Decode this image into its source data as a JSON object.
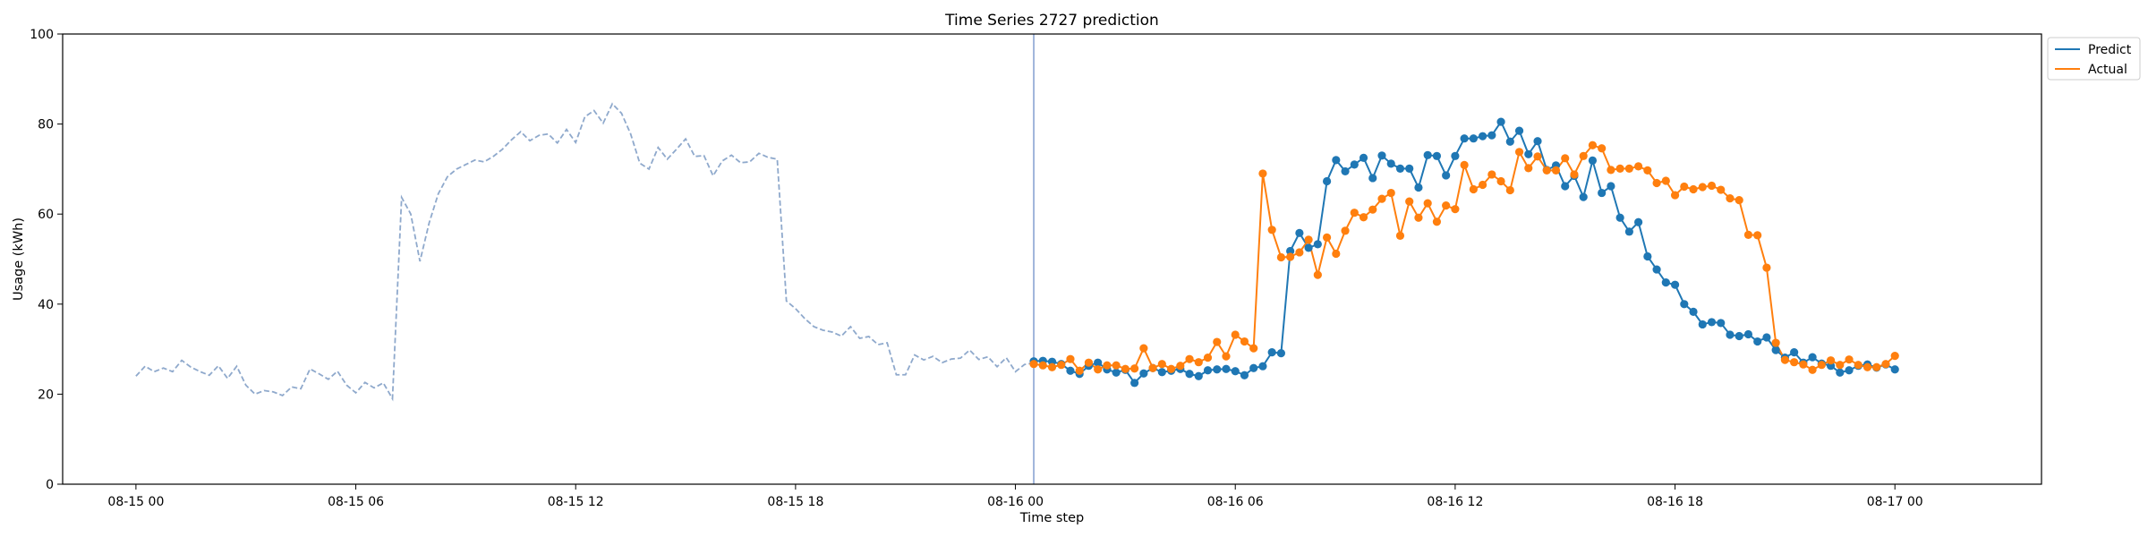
{
  "chart_data": {
    "type": "line",
    "title": "Time Series 2727 prediction",
    "xlabel": "Time step",
    "ylabel": "Usage (kWh)",
    "ylim": [
      0,
      100
    ],
    "xlim": [
      "08-14 22:00",
      "08-17 04:00"
    ],
    "x_ticks": [
      "08-15 00",
      "08-15 06",
      "08-15 12",
      "08-15 18",
      "08-16 00",
      "08-16 06",
      "08-16 12",
      "08-16 18",
      "08-17 00"
    ],
    "y_ticks": [
      0,
      20,
      40,
      60,
      80,
      100
    ],
    "grid": false,
    "legend_position": "top-right (outside plot)",
    "forecast_start": "08-16 00:30",
    "colors": {
      "history": "#8fa9cc",
      "predict": "#1f77b4",
      "actual": "#ff7f0e",
      "divider": "#6f8fc8"
    },
    "history": {
      "x_start": "08-15 00:00",
      "step_minutes": 15,
      "values": [
        24,
        26.2,
        25,
        25.8,
        25,
        27.5,
        26,
        25,
        24.2,
        26.3,
        23.5,
        26.2,
        22,
        20,
        20.8,
        20.5,
        19.7,
        21.6,
        21.2,
        25.6,
        24.5,
        23.3,
        25.1,
        22,
        20.3,
        22.6,
        21.4,
        22.5,
        19,
        63.7,
        60,
        49.5,
        58,
        64.5,
        68.3,
        70,
        71,
        72,
        71.6,
        72.8,
        74.4,
        76.5,
        78.3,
        76.3,
        77.5,
        77.8,
        75.8,
        78.8,
        75.9,
        81.6,
        83,
        80.2,
        84.5,
        82.4,
        77.8,
        71.3,
        70,
        74.8,
        72.2,
        74.4,
        76.7,
        72.8,
        73,
        68.5,
        71.8,
        73.1,
        71.4,
        71.6,
        73.5,
        72.6,
        72.2,
        40.7,
        39,
        36.8,
        35,
        34.2,
        33.8,
        32.9,
        35,
        32.4,
        32.8,
        31,
        31.4,
        24.3,
        24.3,
        28.7,
        27.6,
        28.4,
        27,
        27.8,
        28,
        29.8,
        27.7,
        28.3,
        26.1,
        28.1,
        25,
        26.6,
        26.9
      ]
    },
    "series": [
      {
        "name": "Predict",
        "x_start": "08-16 00:30",
        "step_minutes": 15,
        "values": [
          27.3,
          27.4,
          27.2,
          26.7,
          25.2,
          24.5,
          26.3,
          27,
          25.5,
          24.8,
          25.4,
          22.5,
          24.6,
          25.8,
          24.9,
          25.2,
          25.6,
          24.5,
          24,
          25.3,
          25.5,
          25.6,
          25.1,
          24.2,
          25.8,
          26.2,
          29.3,
          29.1,
          51.8,
          55.8,
          52.5,
          53.3,
          67.3,
          72,
          69.5,
          71,
          72.5,
          68,
          73,
          71.2,
          70.1,
          70.1,
          65.9,
          73.1,
          72.9,
          68.6,
          72.9,
          76.8,
          76.8,
          77.3,
          77.5,
          80.5,
          76.1,
          78.5,
          73.3,
          76.2,
          69.8,
          70.8,
          66.2,
          68.5,
          63.8,
          71.9,
          64.7,
          66.2,
          59.2,
          56.1,
          58.2,
          50.6,
          47.7,
          44.8,
          44.3,
          40,
          38.3,
          35.5,
          36,
          35.8,
          33.2,
          32.9,
          33.3,
          31.7,
          32.6,
          29.8,
          28.1,
          29.3,
          27,
          28.2,
          26.8,
          26.3,
          24.8,
          25.3,
          26.3,
          26.6,
          25.9,
          26.6,
          25.5
        ]
      },
      {
        "name": "Actual",
        "x_start": "08-16 00:30",
        "step_minutes": 15,
        "values": [
          26.7,
          26.4,
          26,
          26.5,
          27.8,
          25.2,
          27,
          25.5,
          26.4,
          26.4,
          25.6,
          25.7,
          30.2,
          25.8,
          26.7,
          25.6,
          26.3,
          27.8,
          27.1,
          28.1,
          31.6,
          28.4,
          33.2,
          31.7,
          30.2,
          69,
          56.5,
          50.4,
          50.5,
          51.5,
          54.3,
          46.5,
          54.8,
          51.2,
          56.3,
          60.3,
          59.3,
          61,
          63.4,
          64.7,
          55.2,
          62.8,
          59.2,
          62.4,
          58.3,
          61.9,
          61.1,
          70.9,
          65.5,
          66.5,
          68.8,
          67.3,
          65.3,
          73.8,
          70.2,
          72.8,
          69.7,
          69.7,
          72.4,
          68.8,
          72.9,
          75.3,
          74.6,
          69.8,
          70.1,
          70.1,
          70.6,
          69.7,
          66.9,
          67.4,
          64.2,
          66.1,
          65.5,
          66,
          66.3,
          65.4,
          63.5,
          63.1,
          55.4,
          55.3,
          48.1,
          31.4,
          27.6,
          27.1,
          26.6,
          25.4,
          26.5,
          27.5,
          26.5,
          27.7,
          26.5,
          26,
          26,
          26.7,
          28.5
        ]
      }
    ]
  }
}
